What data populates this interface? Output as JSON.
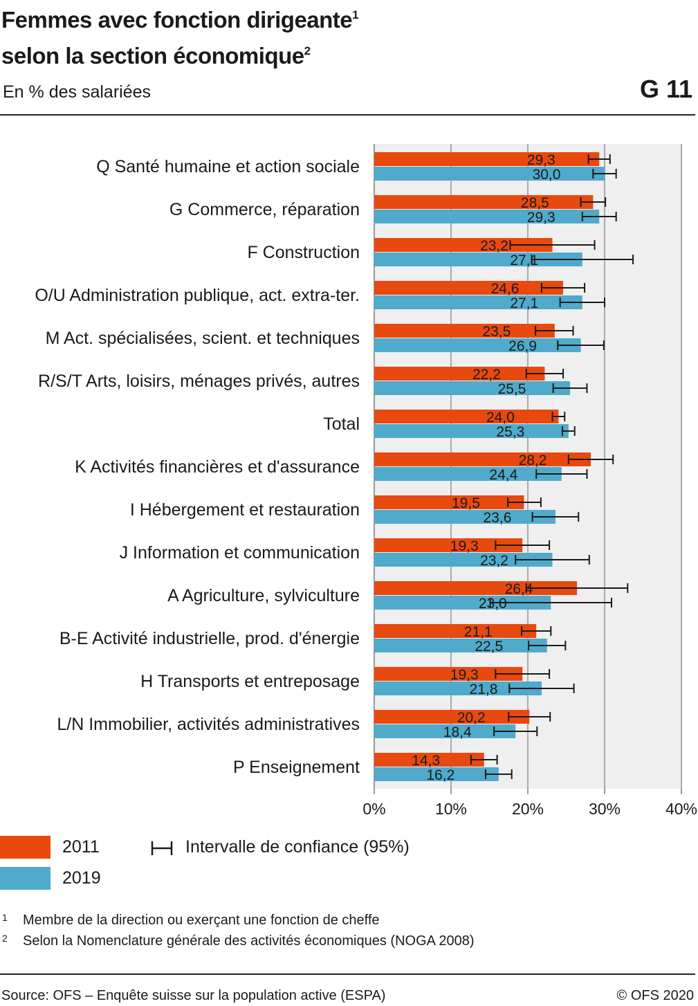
{
  "header": {
    "title_line1": "Femmes avec fonction dirigeante",
    "title_line1_sup": "1",
    "title_line2": "selon la section économique",
    "title_line2_sup": "2",
    "subtitle": "En % des salariées",
    "code": "G 11"
  },
  "legend": {
    "series_2011": "2011",
    "series_2019": "2019",
    "ci": "Intervalle de confiance (95%)"
  },
  "colors": {
    "series_2011": "#E8490F",
    "series_2019": "#4FAACB",
    "plot_bg": "#EFEFEF",
    "grid": "#AAAAAA",
    "ci": "#1A1A1A"
  },
  "footnotes": [
    {
      "num": "1",
      "text": "Membre de la direction ou exerçant une fonction de cheffe"
    },
    {
      "num": "2",
      "text": "Selon la Nomenclature générale des activités économiques (NOGA 2008)"
    }
  ],
  "footer": {
    "source": "Source: OFS – Enquête suisse sur la population active (ESPA)",
    "copyright": "© OFS 2020"
  },
  "chart_data": {
    "type": "bar",
    "orientation": "horizontal",
    "xlim": [
      0,
      40
    ],
    "x_ticks": [
      "0%",
      "10%",
      "20%",
      "30%",
      "40%"
    ],
    "grid": true,
    "categories": [
      "Q Santé humaine et action sociale",
      "G Commerce, réparation",
      "F Construction",
      "O/U Administration publique, act. extra-ter.",
      "M Act. spécialisées, scient. et techniques",
      "R/S/T Arts, loisirs, ménages privés, autres",
      "Total",
      "K Activités financières et d'assurance",
      "I Hébergement et restauration",
      "J Information et communication",
      "A Agriculture, sylviculture",
      "B-E Activité industrielle, prod. d'énergie",
      "H Transports et entreposage",
      "L/N Immobilier, activités administratives",
      "P Enseignement"
    ],
    "series": [
      {
        "name": "2011",
        "values": [
          29.3,
          28.5,
          23.2,
          24.6,
          23.5,
          22.2,
          24.0,
          28.2,
          19.5,
          19.3,
          26.4,
          21.1,
          19.3,
          20.2,
          14.3
        ],
        "labels": [
          "29,3",
          "28,5",
          "23,2",
          "24,6",
          "23,5",
          "22,2",
          "24,0",
          "28,2",
          "19,5",
          "19,3",
          "26,4",
          "21,1",
          "19,3",
          "20,2",
          "14,3"
        ],
        "ci_low": [
          27.9,
          26.9,
          17.7,
          21.8,
          21.0,
          19.8,
          23.2,
          25.3,
          17.4,
          15.8,
          19.8,
          19.2,
          15.8,
          17.5,
          12.6
        ],
        "ci_high": [
          30.7,
          30.1,
          28.7,
          27.4,
          25.9,
          24.6,
          24.8,
          31.1,
          21.7,
          22.8,
          33.0,
          23.0,
          22.8,
          22.9,
          16.0
        ]
      },
      {
        "name": "2019",
        "values": [
          30.0,
          29.3,
          27.1,
          27.1,
          26.9,
          25.5,
          25.3,
          24.4,
          23.6,
          23.2,
          23.0,
          22.5,
          21.8,
          18.4,
          16.2
        ],
        "labels": [
          "30,0",
          "29,3",
          "27,1",
          "27,1",
          "26,9",
          "25,5",
          "25,3",
          "24,4",
          "23,6",
          "23,2",
          "23,0",
          "22,5",
          "21,8",
          "18,4",
          "16,2"
        ],
        "ci_low": [
          28.5,
          27.1,
          20.5,
          24.2,
          23.9,
          23.3,
          24.5,
          21.1,
          20.6,
          18.4,
          15.1,
          20.1,
          17.6,
          15.6,
          14.5
        ],
        "ci_high": [
          31.5,
          31.5,
          33.7,
          30.0,
          29.9,
          27.7,
          26.1,
          27.7,
          26.6,
          28.0,
          30.9,
          24.9,
          26.0,
          21.2,
          17.9
        ]
      }
    ]
  }
}
